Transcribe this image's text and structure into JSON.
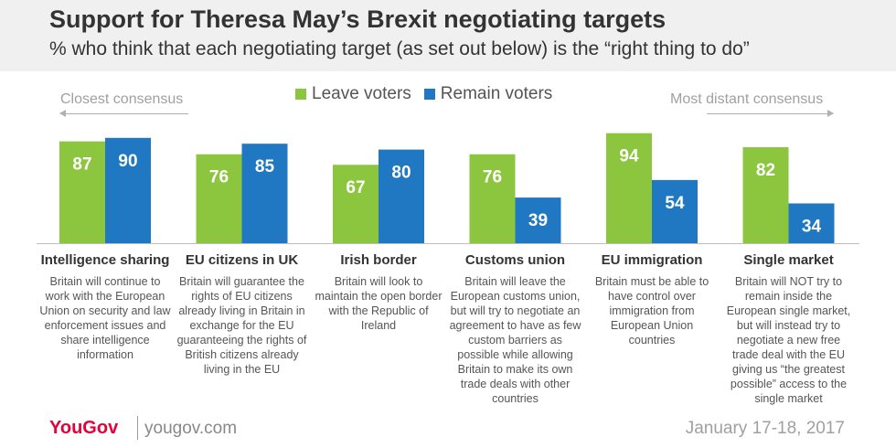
{
  "title": "Support for Theresa May’s Brexit negotiating targets",
  "subtitle": "% who think that each negotiating target (as set out below) is the “right thing to do”",
  "consensus": {
    "left": "Closest consensus",
    "right": "Most distant consensus"
  },
  "colors": {
    "leave": "#8cc63f",
    "remain": "#1f78c1",
    "title": "#333333",
    "logo": "#e4003b"
  },
  "chart_data": {
    "type": "bar",
    "categories": [
      "Intelligence sharing",
      "EU citizens in UK",
      "Irish border",
      "Customs union",
      "EU immigration",
      "Single market"
    ],
    "series": [
      {
        "name": "Leave voters",
        "values": [
          87,
          76,
          67,
          76,
          94,
          82
        ]
      },
      {
        "name": "Remain voters",
        "values": [
          90,
          85,
          80,
          39,
          54,
          34
        ]
      }
    ],
    "ylim": [
      0,
      100
    ],
    "grid": false,
    "legend_position": "top"
  },
  "descriptions": [
    "Britain will continue to work with the European Union on security and law enforcement issues and share intelligence information",
    "Britain will guarantee the rights of EU citizens already living in Britain in exchange for the EU guaranteeing the rights of British citizens already living in the EU",
    "Britain will look to maintain the open border with the Republic of Ireland",
    "Britain will leave the European customs union, but will try to negotiate an agreement to have as few custom barriers as possible while allowing Britain to make its own trade deals with other countries",
    "Britain must be able to have control over immigration from European Union countries",
    "Britain will NOT try to remain inside the European single market, but will instead try to negotiate a new free trade deal with the EU giving us “the greatest possible” access to the single market"
  ],
  "footer": {
    "brand": "YouGov",
    "url": "yougov.com",
    "date": "January 17-18, 2017"
  }
}
